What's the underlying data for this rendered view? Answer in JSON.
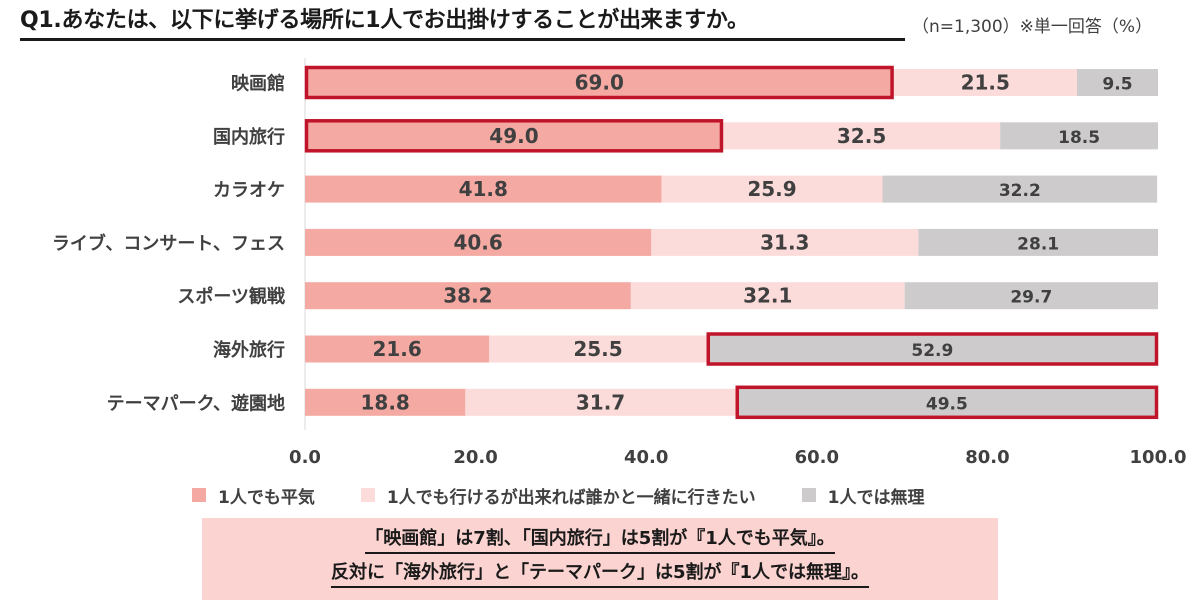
{
  "header": {
    "title": "Q1.あなたは、以下に挙げる場所に1人でお出掛けすることが出来ますか。",
    "note": "（n=1,300）※単一回答（%）"
  },
  "colors": {
    "series1": "#f4a9a3",
    "series2": "#fcdcda",
    "series3": "#cdcbcc",
    "highlight": "#c0142a"
  },
  "chart_data": {
    "type": "bar",
    "orientation": "horizontal-stacked",
    "categories": [
      "映画館",
      "国内旅行",
      "カラオケ",
      "ライブ、コンサート、フェス",
      "スポーツ観戦",
      "海外旅行",
      "テーマパーク、遊園地"
    ],
    "series": [
      {
        "name": "1人でも平気",
        "values": [
          69.0,
          49.0,
          41.8,
          40.6,
          38.2,
          21.6,
          18.8
        ]
      },
      {
        "name": "1人でも行けるが出来れば誰かと一緒に行きたい",
        "values": [
          21.5,
          32.5,
          25.9,
          31.3,
          32.1,
          25.5,
          31.7
        ]
      },
      {
        "name": "1人では無理",
        "values": [
          9.5,
          18.5,
          32.2,
          28.1,
          29.7,
          52.9,
          49.5
        ]
      }
    ],
    "xlim": [
      0,
      100
    ],
    "xticks": [
      "0.0",
      "20.0",
      "40.0",
      "60.0",
      "80.0",
      "100.0"
    ],
    "highlights": [
      {
        "category": "映画館",
        "series": "1人でも平気"
      },
      {
        "category": "国内旅行",
        "series": "1人でも平気"
      },
      {
        "category": "海外旅行",
        "series": "1人では無理"
      },
      {
        "category": "テーマパーク、遊園地",
        "series": "1人では無理"
      }
    ],
    "legend_position": "bottom"
  },
  "callout": {
    "line1": "「映画館」は7割、「国内旅行」は5割が『1人でも平気』。",
    "line2": "反対に「海外旅行」と「テーマパーク」は5割が『1人では無理』。"
  }
}
